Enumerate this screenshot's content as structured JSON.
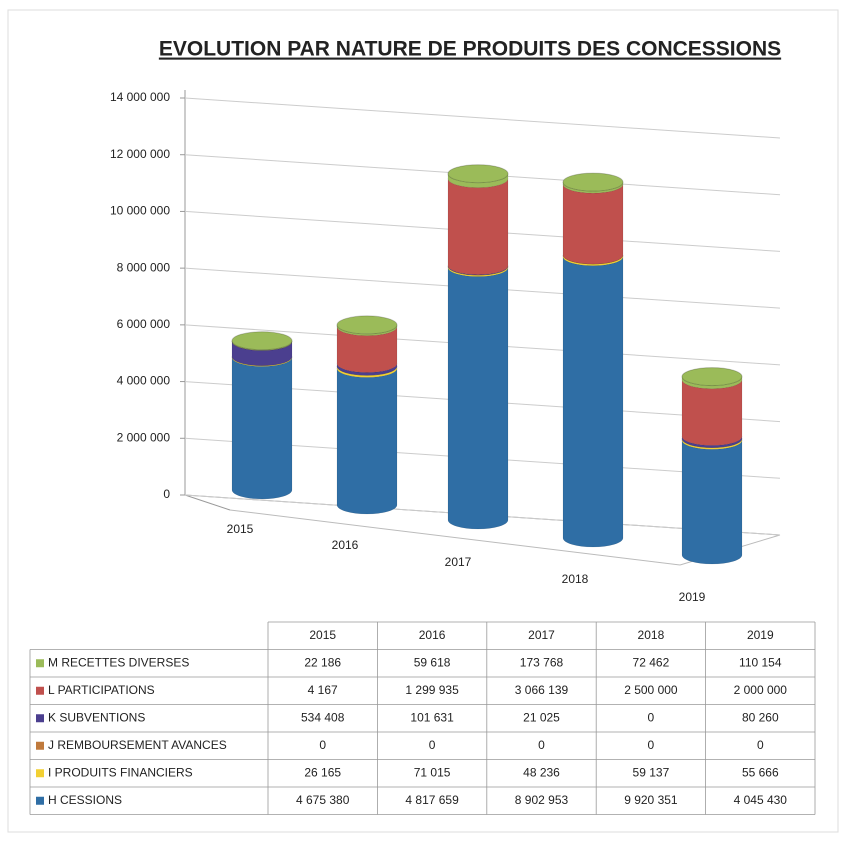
{
  "chart_data": {
    "type": "bar",
    "stacked": true,
    "title": "EVOLUTION PAR NATURE DE PRODUITS DES CONCESSIONS",
    "categories": [
      "2015",
      "2016",
      "2017",
      "2018",
      "2019"
    ],
    "ylim": [
      0,
      14000000
    ],
    "yticks": [
      0,
      {
        "value": 2000000,
        "label": "2 000 000"
      },
      {
        "value": 4000000,
        "label": "4 000 000"
      },
      {
        "value": 6000000,
        "label": "6 000 000"
      },
      {
        "value": 8000000,
        "label": "8 000 000"
      },
      {
        "value": 10000000,
        "label": "10 000 000"
      },
      {
        "value": 12000000,
        "label": "12 000 000"
      },
      {
        "value": 14000000,
        "label": "14 000 000"
      }
    ],
    "grid": true,
    "series": [
      {
        "name": "M RECETTES DIVERSES",
        "color": "#9bbb59",
        "values": [
          22186,
          59618,
          173768,
          72462,
          110154
        ],
        "value_labels": [
          "22 186",
          "59 618",
          "173 768",
          "72 462",
          "110 154"
        ]
      },
      {
        "name": "L PARTICIPATIONS",
        "color": "#c0504d",
        "values": [
          4167,
          1299935,
          3066139,
          2500000,
          2000000
        ],
        "value_labels": [
          "4 167",
          "1 299 935",
          "3 066 139",
          "2 500 000",
          "2 000 000"
        ]
      },
      {
        "name": "K SUBVENTIONS",
        "color": "#4b3f8f",
        "values": [
          534408,
          101631,
          21025,
          0,
          80260
        ],
        "value_labels": [
          "534 408",
          "101 631",
          "21 025",
          "0",
          "80 260"
        ]
      },
      {
        "name": "J REMBOURSEMENT AVANCES",
        "color": "#c07a3c",
        "values": [
          0,
          0,
          0,
          0,
          0
        ],
        "value_labels": [
          "0",
          "0",
          "0",
          "0",
          "0"
        ]
      },
      {
        "name": "I PRODUITS FINANCIERS",
        "color": "#f2d033",
        "values": [
          26165,
          71015,
          48236,
          59137,
          55666
        ],
        "value_labels": [
          "26 165",
          "71 015",
          "48 236",
          "59 137",
          "55 666"
        ]
      },
      {
        "name": "H CESSIONS",
        "color": "#2f6ea5",
        "values": [
          4675380,
          4817659,
          8902953,
          9920351,
          4045430
        ],
        "value_labels": [
          "4 675 380",
          "4 817 659",
          "8 902 953",
          "9 920 351",
          "4 045 430"
        ]
      }
    ]
  }
}
